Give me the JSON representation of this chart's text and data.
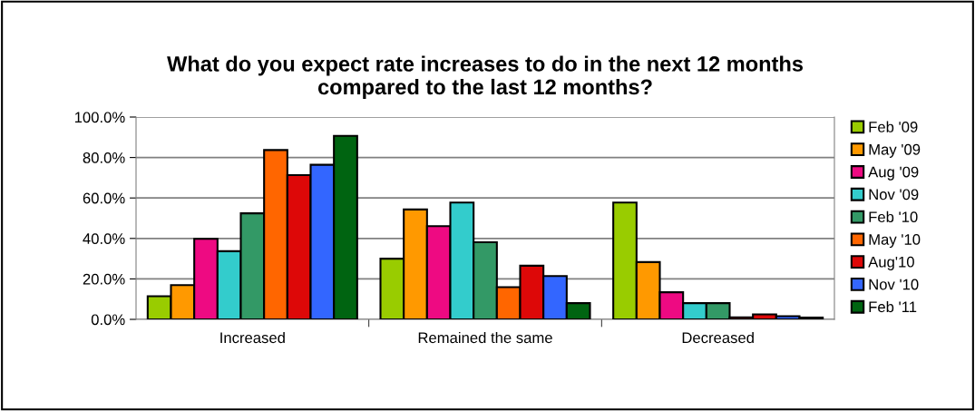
{
  "chart_data": {
    "type": "bar",
    "title": "What do you expect rate increases to do in the next 12 months\ncompared to the last 12 months?",
    "categories": [
      "Increased",
      "Remained the same",
      "Decreased"
    ],
    "series": [
      {
        "name": "Feb '09",
        "color": "#99cc00",
        "values": [
          11.4,
          30.0,
          57.7
        ]
      },
      {
        "name": "May '09",
        "color": "#ff9900",
        "values": [
          16.9,
          54.3,
          28.3
        ]
      },
      {
        "name": "Aug '09",
        "color": "#ee0a82",
        "values": [
          39.8,
          46.1,
          13.4
        ]
      },
      {
        "name": "Nov '09",
        "color": "#33cccc",
        "values": [
          33.7,
          57.7,
          8.0
        ]
      },
      {
        "name": "Feb '10",
        "color": "#339966",
        "values": [
          52.4,
          38.1,
          8.0
        ]
      },
      {
        "name": "May '10",
        "color": "#ff6600",
        "values": [
          83.7,
          15.9,
          1.0
        ]
      },
      {
        "name": "Aug'10",
        "color": "#dd0808",
        "values": [
          71.3,
          26.5,
          2.5
        ]
      },
      {
        "name": "Nov '10",
        "color": "#3366ff",
        "values": [
          76.4,
          21.4,
          1.6
        ]
      },
      {
        "name": "Feb '11",
        "color": "#006411",
        "values": [
          90.7,
          8.0,
          0.9
        ]
      }
    ],
    "ylim": [
      0,
      100
    ],
    "yticks": [
      {
        "value": 0,
        "label": "0.0%"
      },
      {
        "value": 20,
        "label": "20.0%"
      },
      {
        "value": 40,
        "label": "40.0%"
      },
      {
        "value": 60,
        "label": "60.0%"
      },
      {
        "value": 80,
        "label": "80.0%"
      },
      {
        "value": 100,
        "label": "100.0%"
      }
    ],
    "grid": "y",
    "legend": "right"
  }
}
